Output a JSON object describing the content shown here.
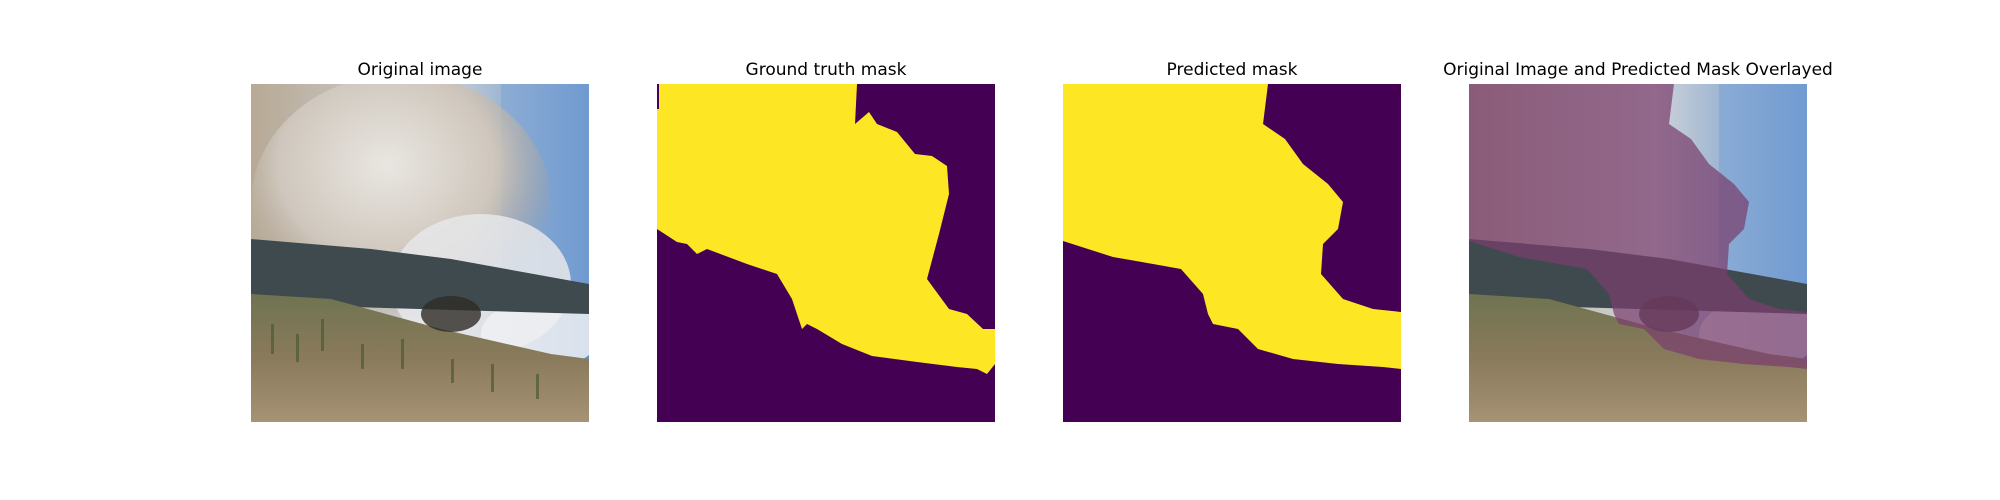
{
  "figure": {
    "panels": [
      {
        "title": "Original image"
      },
      {
        "title": "Ground truth mask"
      },
      {
        "title": "Predicted mask"
      },
      {
        "title": "Original Image and Predicted Mask Overlayed"
      }
    ]
  },
  "colors": {
    "mask_foreground": "#fde725",
    "mask_background": "#440154",
    "overlay_tint": "#7a3f6e"
  }
}
